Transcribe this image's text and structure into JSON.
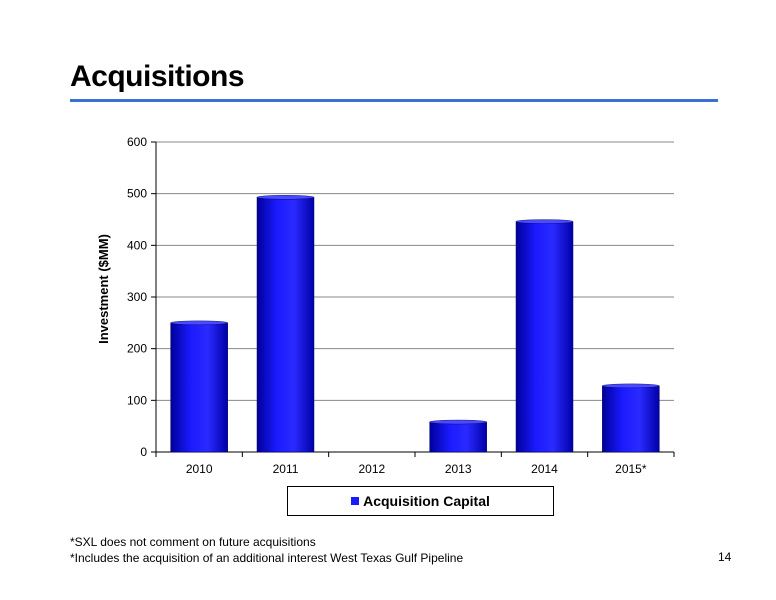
{
  "slide": {
    "title": "Acquisitions",
    "footnotes": [
      "*SXL does not comment on future acquisitions",
      "*Includes the acquisition of an additional interest West Texas Gulf Pipeline"
    ],
    "page_number": "14"
  },
  "chart_data": {
    "type": "bar",
    "categories": [
      "2010",
      "2011",
      "2012",
      "2013",
      "2014",
      "2015*"
    ],
    "series": [
      {
        "name": "Acquisition Capital",
        "values": [
          250,
          493,
          0,
          58,
          446,
          128
        ]
      }
    ],
    "title": "",
    "xlabel": "",
    "ylabel": "Investment ($MM)",
    "ylim": [
      0,
      600
    ],
    "yticks": [
      0,
      100,
      200,
      300,
      400,
      500,
      600
    ],
    "grid": true,
    "legend": "bottom",
    "colors": {
      "bar": "#1a1aff",
      "bar_dark": "#00009a",
      "grid": "#888888"
    }
  }
}
